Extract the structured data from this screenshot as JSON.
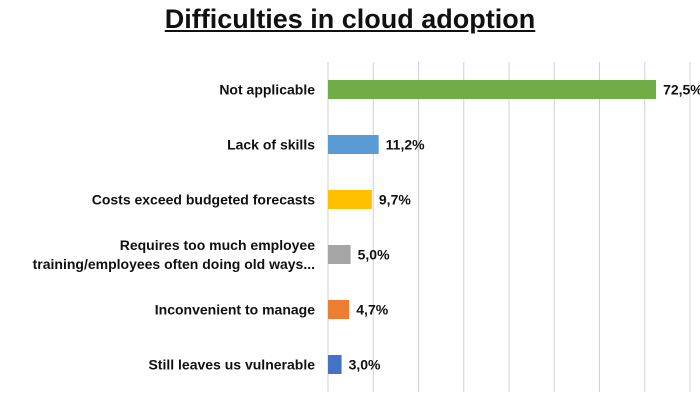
{
  "chart_data": {
    "type": "bar",
    "orientation": "horizontal",
    "title": "Difficulties in cloud adoption",
    "xlabel": "",
    "ylabel": "",
    "xlim": [
      0,
      80
    ],
    "grid": true,
    "categories": [
      [
        "Not applicable"
      ],
      [
        "Lack of skills"
      ],
      [
        "Costs exceed budgeted forecasts"
      ],
      [
        "Requires too much employee",
        "training/employees often doing old ways..."
      ],
      [
        "Inconvenient to manage"
      ],
      [
        "Still leaves us vulnerable"
      ]
    ],
    "values": [
      72.5,
      11.2,
      9.7,
      5.0,
      4.7,
      3.0
    ],
    "value_labels": [
      "72,5%",
      "11,2%",
      "9,7%",
      "5,0%",
      "4,7%",
      "3,0%"
    ],
    "colors": [
      "#70ad47",
      "#5b9bd5",
      "#ffc000",
      "#a5a5a5",
      "#ed7d31",
      "#4472c4"
    ]
  }
}
